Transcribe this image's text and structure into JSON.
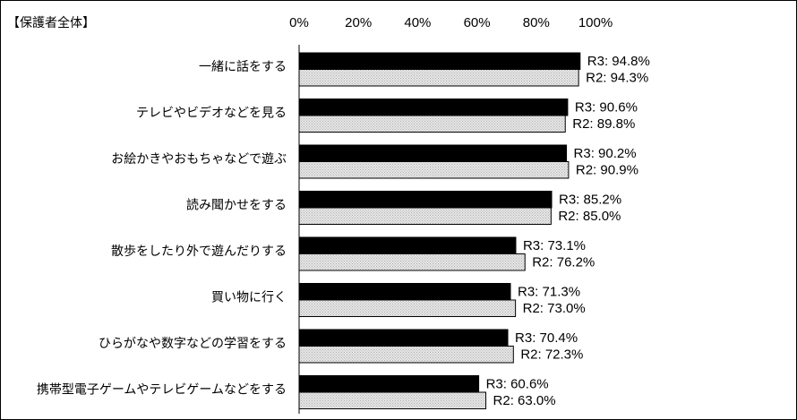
{
  "chart_data": {
    "type": "bar",
    "orientation": "horizontal",
    "title": "【保護者全体】",
    "xlim": [
      0,
      100
    ],
    "x_ticks": [
      "0%",
      "20%",
      "40%",
      "60%",
      "80%",
      "100%"
    ],
    "categories": [
      "一緒に話をする",
      "テレビやビデオなどを見る",
      "お絵かきやおもちゃなどで遊ぶ",
      "読み聞かせをする",
      "散歩をしたり外で遊んだりする",
      "買い物に行く",
      "ひらがなや数字などの学習をする",
      "携帯型電子ゲームやテレビゲームなどをする"
    ],
    "series": [
      {
        "name": "R3",
        "color": "#000000",
        "values": [
          94.8,
          90.6,
          90.2,
          85.2,
          73.1,
          71.3,
          70.4,
          60.6
        ],
        "labels": [
          "R3: 94.8%",
          "R3: 90.6%",
          "R3: 90.2%",
          "R3: 85.2%",
          "R3: 73.1%",
          "R3: 71.3%",
          "R3: 70.4%",
          "R3: 60.6%"
        ]
      },
      {
        "name": "R2",
        "color": "#d9d9d9",
        "values": [
          94.3,
          89.8,
          90.9,
          85.0,
          76.2,
          73.0,
          72.3,
          63.0
        ],
        "labels": [
          "R2: 94.3%",
          "R2: 89.8%",
          "R2: 90.9%",
          "R2: 85.0%",
          "R2: 76.2%",
          "R2: 73.0%",
          "R2: 72.3%",
          "R2: 63.0%"
        ]
      }
    ],
    "grid": false,
    "legend": "none"
  }
}
